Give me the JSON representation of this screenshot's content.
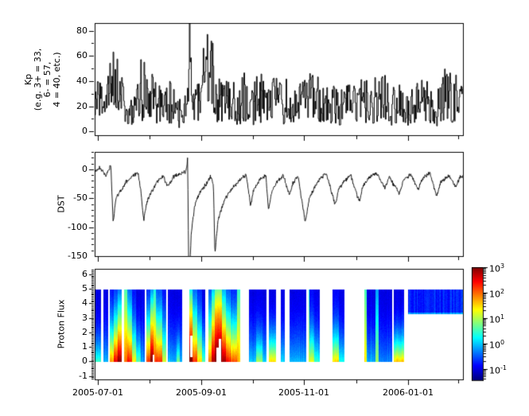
{
  "figure": {
    "bg": "#ffffff",
    "frame_color": "#000000",
    "text_color": "#000000"
  },
  "x_axis": {
    "ticks": [
      {
        "f": 0.008,
        "label": "2005-07-01"
      },
      {
        "f": 0.148,
        "label": ""
      },
      {
        "f": 0.289,
        "label": "2005-09-01"
      },
      {
        "f": 0.429,
        "label": ""
      },
      {
        "f": 0.569,
        "label": "2005-11-01"
      },
      {
        "f": 0.71,
        "label": ""
      },
      {
        "f": 0.85,
        "label": "2006-01-01"
      },
      {
        "f": 0.988,
        "label": ""
      }
    ]
  },
  "chart_data": [
    {
      "type": "line",
      "name": "Kp index time series",
      "ylabel_lines": [
        "Kp",
        "(e.g. 3+ = 33,",
        "6- = 57,",
        "4 = 40, etc.)"
      ],
      "ylim": [
        -3,
        86
      ],
      "yticks_major": [
        0,
        20,
        40,
        60,
        80
      ],
      "ytick_labels": [
        "0",
        "20",
        "40",
        "60",
        "80"
      ],
      "yticks_minor": [
        10,
        30,
        50,
        70
      ],
      "line_color": "#000000",
      "noise_seed": 7,
      "envelope": [
        [
          0.0,
          8,
          38
        ],
        [
          0.03,
          10,
          45
        ],
        [
          0.05,
          20,
          63
        ],
        [
          0.07,
          10,
          55
        ],
        [
          0.085,
          3,
          25
        ],
        [
          0.105,
          3,
          30
        ],
        [
          0.125,
          8,
          57
        ],
        [
          0.15,
          10,
          52
        ],
        [
          0.17,
          3,
          35
        ],
        [
          0.19,
          6,
          47
        ],
        [
          0.21,
          3,
          38
        ],
        [
          0.23,
          3,
          28
        ],
        [
          0.252,
          5,
          45
        ],
        [
          0.2565,
          20,
          87
        ],
        [
          0.262,
          10,
          55
        ],
        [
          0.275,
          5,
          40
        ],
        [
          0.295,
          10,
          66
        ],
        [
          0.305,
          15,
          77
        ],
        [
          0.32,
          12,
          70
        ],
        [
          0.335,
          5,
          45
        ],
        [
          0.35,
          5,
          38
        ],
        [
          0.365,
          8,
          52
        ],
        [
          0.385,
          4,
          35
        ],
        [
          0.405,
          8,
          48
        ],
        [
          0.425,
          4,
          32
        ],
        [
          0.445,
          8,
          52
        ],
        [
          0.465,
          4,
          36
        ],
        [
          0.485,
          8,
          55
        ],
        [
          0.505,
          4,
          40
        ],
        [
          0.525,
          8,
          50
        ],
        [
          0.545,
          4,
          32
        ],
        [
          0.565,
          8,
          46
        ],
        [
          0.585,
          6,
          52
        ],
        [
          0.605,
          8,
          55
        ],
        [
          0.625,
          4,
          36
        ],
        [
          0.645,
          7,
          46
        ],
        [
          0.665,
          4,
          31
        ],
        [
          0.685,
          8,
          50
        ],
        [
          0.705,
          4,
          36
        ],
        [
          0.725,
          7,
          46
        ],
        [
          0.75,
          5,
          41
        ],
        [
          0.775,
          8,
          55
        ],
        [
          0.8,
          4,
          36
        ],
        [
          0.825,
          7,
          46
        ],
        [
          0.855,
          4,
          31
        ],
        [
          0.88,
          8,
          50
        ],
        [
          0.905,
          7,
          56
        ],
        [
          0.93,
          4,
          36
        ],
        [
          0.95,
          8,
          50
        ],
        [
          0.975,
          7,
          46
        ],
        [
          1.0,
          5,
          41
        ]
      ],
      "spikes": [
        [
          0.05,
          63
        ],
        [
          0.125,
          57
        ],
        [
          0.2565,
          87
        ],
        [
          0.295,
          66
        ],
        [
          0.305,
          77
        ],
        [
          0.32,
          70
        ]
      ]
    },
    {
      "type": "line",
      "name": "DST index time series",
      "ylabel": "DST",
      "ylim": [
        -150,
        30
      ],
      "yticks_major": [
        0,
        -50,
        -100,
        -150
      ],
      "ytick_labels": [
        "0",
        "-50",
        "-100",
        "-150"
      ],
      "yticks_minor": [
        30,
        20,
        10,
        -10,
        -20,
        -30,
        -40,
        -60,
        -70,
        -80,
        -90,
        -110,
        -120,
        -130,
        -140
      ],
      "line_color": "#000000",
      "noise_seed": 3,
      "noise_amp": 6,
      "anchors": [
        [
          0.0,
          -3
        ],
        [
          0.015,
          2
        ],
        [
          0.03,
          -12
        ],
        [
          0.044,
          8
        ],
        [
          0.05,
          -92
        ],
        [
          0.058,
          -50
        ],
        [
          0.07,
          -38
        ],
        [
          0.085,
          -22
        ],
        [
          0.1,
          -14
        ],
        [
          0.118,
          -6
        ],
        [
          0.126,
          -42
        ],
        [
          0.133,
          -88
        ],
        [
          0.142,
          -55
        ],
        [
          0.155,
          -38
        ],
        [
          0.17,
          -22
        ],
        [
          0.185,
          -12
        ],
        [
          0.2,
          -30
        ],
        [
          0.212,
          -14
        ],
        [
          0.228,
          -8
        ],
        [
          0.248,
          -4
        ],
        [
          0.2525,
          18
        ],
        [
          0.256,
          -216
        ],
        [
          0.262,
          -110
        ],
        [
          0.272,
          -62
        ],
        [
          0.285,
          -40
        ],
        [
          0.3,
          -28
        ],
        [
          0.315,
          -12
        ],
        [
          0.3225,
          -30
        ],
        [
          0.3265,
          -147
        ],
        [
          0.335,
          -88
        ],
        [
          0.348,
          -60
        ],
        [
          0.362,
          -42
        ],
        [
          0.38,
          -28
        ],
        [
          0.398,
          -16
        ],
        [
          0.412,
          -10
        ],
        [
          0.423,
          -62
        ],
        [
          0.432,
          -35
        ],
        [
          0.448,
          -18
        ],
        [
          0.465,
          -10
        ],
        [
          0.472,
          -72
        ],
        [
          0.48,
          -40
        ],
        [
          0.495,
          -22
        ],
        [
          0.512,
          -10
        ],
        [
          0.5285,
          -45
        ],
        [
          0.538,
          -24
        ],
        [
          0.552,
          -12
        ],
        [
          0.572,
          -92
        ],
        [
          0.582,
          -52
        ],
        [
          0.596,
          -32
        ],
        [
          0.612,
          -16
        ],
        [
          0.63,
          -8
        ],
        [
          0.653,
          -62
        ],
        [
          0.662,
          -36
        ],
        [
          0.678,
          -20
        ],
        [
          0.695,
          -10
        ],
        [
          0.718,
          -56
        ],
        [
          0.728,
          -30
        ],
        [
          0.745,
          -14
        ],
        [
          0.765,
          -6
        ],
        [
          0.788,
          -32
        ],
        [
          0.8,
          -14
        ],
        [
          0.827,
          -42
        ],
        [
          0.838,
          -20
        ],
        [
          0.858,
          -8
        ],
        [
          0.878,
          -36
        ],
        [
          0.89,
          -16
        ],
        [
          0.91,
          -6
        ],
        [
          0.928,
          -46
        ],
        [
          0.94,
          -22
        ],
        [
          0.962,
          -10
        ],
        [
          0.98,
          -30
        ],
        [
          0.992,
          -14
        ],
        [
          1.0,
          -12
        ]
      ]
    },
    {
      "type": "heatmap",
      "name": "Proton flux spectrogram",
      "ylabel": "Proton Flux",
      "ylim": [
        -1.24,
        6.37
      ],
      "yticks_major": [
        -1,
        0,
        1,
        2,
        3,
        4,
        5,
        6
      ],
      "ytick_labels": [
        "-1",
        "0",
        "1",
        "2",
        "3",
        "4",
        "5",
        "6"
      ],
      "ytick_minor_step": 0.1,
      "data_y_range": [
        0,
        5
      ],
      "colormap": "jet",
      "scale": "log10",
      "clim_exponents": [
        -1.45,
        3
      ],
      "noise_seed": 9,
      "colorbar": {
        "mantissa": "10",
        "tick_exponents": [
          3,
          2,
          1,
          0,
          -1
        ]
      },
      "segments": [
        [
          0.0,
          0.017,
          -1.0,
          0.5,
          2.5
        ],
        [
          0.024,
          0.037,
          -1.0,
          -0.1,
          2.0
        ],
        [
          0.041,
          0.052,
          -0.8,
          1.8,
          1.7
        ],
        [
          0.052,
          0.063,
          -0.6,
          2.6,
          1.4
        ],
        [
          0.063,
          0.073,
          -0.4,
          3.0,
          1.15
        ],
        [
          0.08,
          0.089,
          0.5,
          1.9,
          1.0
        ],
        [
          0.089,
          0.102,
          -0.4,
          2.4,
          1.3
        ],
        [
          0.102,
          0.112,
          -0.8,
          1.4,
          1.8
        ],
        [
          0.112,
          0.125,
          -1.0,
          0.6,
          2.2
        ],
        [
          0.125,
          0.136,
          -1.0,
          -0.2,
          2.0
        ],
        [
          0.141,
          0.151,
          -0.7,
          2.2,
          1.4
        ],
        [
          0.151,
          0.16,
          -0.3,
          3.05,
          1.0
        ],
        [
          0.16,
          0.166,
          0.3,
          2.2,
          1.0
        ],
        [
          0.166,
          0.184,
          -0.5,
          2.3,
          1.4
        ],
        [
          0.184,
          0.194,
          -0.8,
          1.2,
          1.7
        ],
        [
          0.199,
          0.222,
          -1.0,
          -0.1,
          2.0
        ],
        [
          0.222,
          0.231,
          -1.0,
          0.8,
          2.6
        ],
        [
          0.231,
          0.238,
          -1.0,
          -0.1,
          2.0
        ],
        [
          0.257,
          0.266,
          0.2,
          3.2,
          0.9
        ],
        [
          0.266,
          0.279,
          -0.4,
          2.3,
          1.3
        ],
        [
          0.279,
          0.291,
          -0.7,
          1.5,
          1.6
        ],
        [
          0.291,
          0.3,
          -1.0,
          0.6,
          2.0
        ],
        [
          0.309,
          0.317,
          -0.5,
          2.0,
          1.3
        ],
        [
          0.317,
          0.326,
          0.0,
          2.8,
          1.0
        ],
        [
          0.326,
          0.346,
          0.6,
          3.25,
          0.85
        ],
        [
          0.346,
          0.356,
          -0.1,
          2.9,
          1.1
        ],
        [
          0.356,
          0.369,
          -0.5,
          2.4,
          1.3
        ],
        [
          0.369,
          0.387,
          -0.7,
          2.1,
          1.5
        ],
        [
          0.387,
          0.395,
          0.4,
          1.7,
          1.0
        ],
        [
          0.419,
          0.438,
          -1.0,
          0.0,
          2.0
        ],
        [
          0.438,
          0.456,
          -1.0,
          0.9,
          2.4
        ],
        [
          0.456,
          0.467,
          -1.0,
          0.1,
          2.0
        ],
        [
          0.473,
          0.492,
          -1.0,
          1.5,
          2.3
        ],
        [
          0.505,
          0.516,
          -1.0,
          0.1,
          2.2
        ],
        [
          0.529,
          0.575,
          -1.0,
          -0.1,
          2.0
        ],
        [
          0.581,
          0.584,
          0.3,
          1.3,
          1.0
        ],
        [
          0.584,
          0.596,
          -0.9,
          1.2,
          2.0
        ],
        [
          0.596,
          0.611,
          -1.0,
          0.4,
          2.2
        ],
        [
          0.646,
          0.663,
          -0.9,
          1.5,
          2.1
        ],
        [
          0.663,
          0.678,
          -1.0,
          0.3,
          2.3
        ],
        [
          0.732,
          0.739,
          0.5,
          1.4,
          1.0
        ],
        [
          0.739,
          0.762,
          -1.0,
          -0.1,
          2.0
        ],
        [
          0.762,
          0.771,
          -0.2,
          0.9,
          1.2
        ],
        [
          0.771,
          0.808,
          -1.0,
          -0.3,
          2.0
        ],
        [
          0.812,
          0.84,
          -1.0,
          1.6,
          2.6
        ]
      ],
      "block": {
        "x": [
          0.851,
          1.0
        ],
        "y": [
          3.3,
          5.0
        ],
        "v": -0.75
      },
      "holes": [
        {
          "x": [
            0.259,
            0.2655
          ],
          "y": [
            0.3,
            1.8
          ]
        },
        {
          "x": [
            0.33,
            0.336
          ],
          "y": [
            0.0,
            1.0
          ]
        },
        {
          "x": [
            0.338,
            0.344
          ],
          "y": [
            0.0,
            1.6
          ]
        },
        {
          "x": [
            0.157,
            0.1615
          ],
          "y": [
            0.0,
            0.5
          ]
        }
      ]
    }
  ]
}
